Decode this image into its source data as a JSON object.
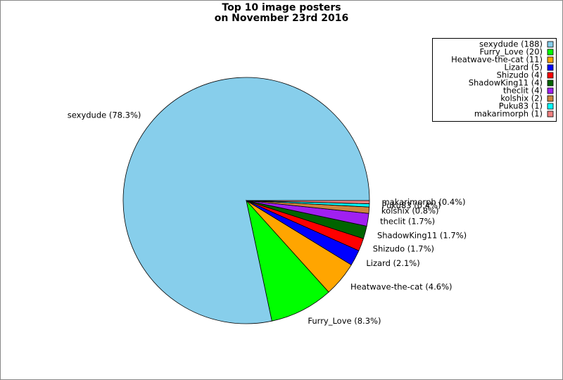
{
  "chart_data": {
    "type": "pie",
    "title": [
      "Top 10 image posters",
      "on November 23rd 2016"
    ],
    "categories": [
      "sexydude",
      "Furry_Love",
      "Heatwave-the-cat",
      "Lizard",
      "Shizudo",
      "ShadowKing11",
      "theclit",
      "kolshix",
      "Puku83",
      "makarimorph"
    ],
    "values": [
      188,
      20,
      11,
      5,
      4,
      4,
      4,
      2,
      1,
      1
    ],
    "value_labels": [
      "sexydude (78.3%)",
      "Furry_Love (8.3%)",
      "Heatwave-the-cat (4.6%)",
      "Lizard (2.1%)",
      "Shizudo (1.7%)",
      "ShadowKing11 (1.7%)",
      "theclit (1.7%)",
      "kolshix (0.8%)",
      "Puku83 (0.4%)",
      "makarimorph (0.4%)"
    ],
    "legend_labels": [
      "sexydude (188)",
      "Furry_Love (20)",
      "Heatwave-the-cat (11)",
      "Lizard (5)",
      "Shizudo (4)",
      "ShadowKing11 (4)",
      "theclit (4)",
      "kolshix (2)",
      "Puku83 (1)",
      "makarimorph (1)"
    ],
    "colors": [
      "#87ceeb",
      "#00ff00",
      "#ffa500",
      "#0000ff",
      "#ff0000",
      "#006400",
      "#a020f0",
      "#cd853f",
      "#00ffff",
      "#f08080"
    ],
    "legend_position": "upper right"
  }
}
